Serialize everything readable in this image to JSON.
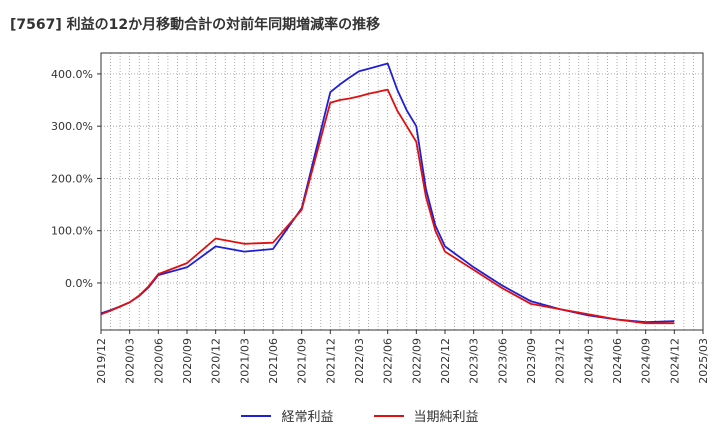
{
  "chart_data": {
    "type": "line",
    "title": "[7567]  利益の12か月移動合計の対前年同期増減率の推移",
    "xlabel": "",
    "ylabel": "",
    "ylim": [
      -90,
      440
    ],
    "yticks": [
      0,
      100,
      200,
      300,
      400
    ],
    "ytick_labels": [
      "0.0%",
      "100.0%",
      "200.0%",
      "300.0%",
      "400.0%"
    ],
    "xticks": [
      "2019/12",
      "2020/03",
      "2020/06",
      "2020/09",
      "2020/12",
      "2021/03",
      "2021/06",
      "2021/09",
      "2021/12",
      "2022/03",
      "2022/06",
      "2022/09",
      "2022/12",
      "2023/03",
      "2023/06",
      "2023/09",
      "2023/12",
      "2024/03",
      "2024/06",
      "2024/09",
      "2024/12",
      "2025/03"
    ],
    "grid": true,
    "legend_position": "bottom",
    "series": [
      {
        "name": "経常利益",
        "color": "#1f1fd6",
        "x": [
          "2019/12",
          "2020/01",
          "2020/02",
          "2020/03",
          "2020/04",
          "2020/05",
          "2020/06",
          "2020/09",
          "2020/12",
          "2021/03",
          "2021/06",
          "2021/09",
          "2021/12",
          "2022/01",
          "2022/02",
          "2022/03",
          "2022/04",
          "2022/05",
          "2022/06",
          "2022/07",
          "2022/08",
          "2022/09",
          "2022/10",
          "2022/11",
          "2022/12",
          "2023/03",
          "2023/06",
          "2023/09",
          "2023/12",
          "2024/03",
          "2024/06",
          "2024/09",
          "2024/12"
        ],
        "values": [
          -58,
          -52,
          -45,
          -37,
          -25,
          -8,
          15,
          30,
          70,
          60,
          65,
          143,
          365,
          380,
          393,
          405,
          410,
          415,
          420,
          370,
          330,
          300,
          180,
          110,
          70,
          30,
          -5,
          -35,
          -50,
          -62,
          -70,
          -75,
          -73
        ]
      },
      {
        "name": "当期純利益",
        "color": "#e01010",
        "x": [
          "2019/12",
          "2020/01",
          "2020/02",
          "2020/03",
          "2020/04",
          "2020/05",
          "2020/06",
          "2020/09",
          "2020/12",
          "2021/03",
          "2021/06",
          "2021/09",
          "2021/12",
          "2022/01",
          "2022/02",
          "2022/03",
          "2022/04",
          "2022/05",
          "2022/06",
          "2022/07",
          "2022/08",
          "2022/09",
          "2022/10",
          "2022/11",
          "2022/12",
          "2023/03",
          "2023/06",
          "2023/09",
          "2023/12",
          "2024/03",
          "2024/06",
          "2024/09",
          "2024/12"
        ],
        "values": [
          -60,
          -53,
          -45,
          -37,
          -24,
          -6,
          17,
          38,
          85,
          75,
          77,
          140,
          345,
          350,
          353,
          357,
          362,
          366,
          370,
          330,
          300,
          270,
          165,
          100,
          60,
          25,
          -10,
          -40,
          -50,
          -60,
          -70,
          -77,
          -77
        ]
      }
    ]
  }
}
